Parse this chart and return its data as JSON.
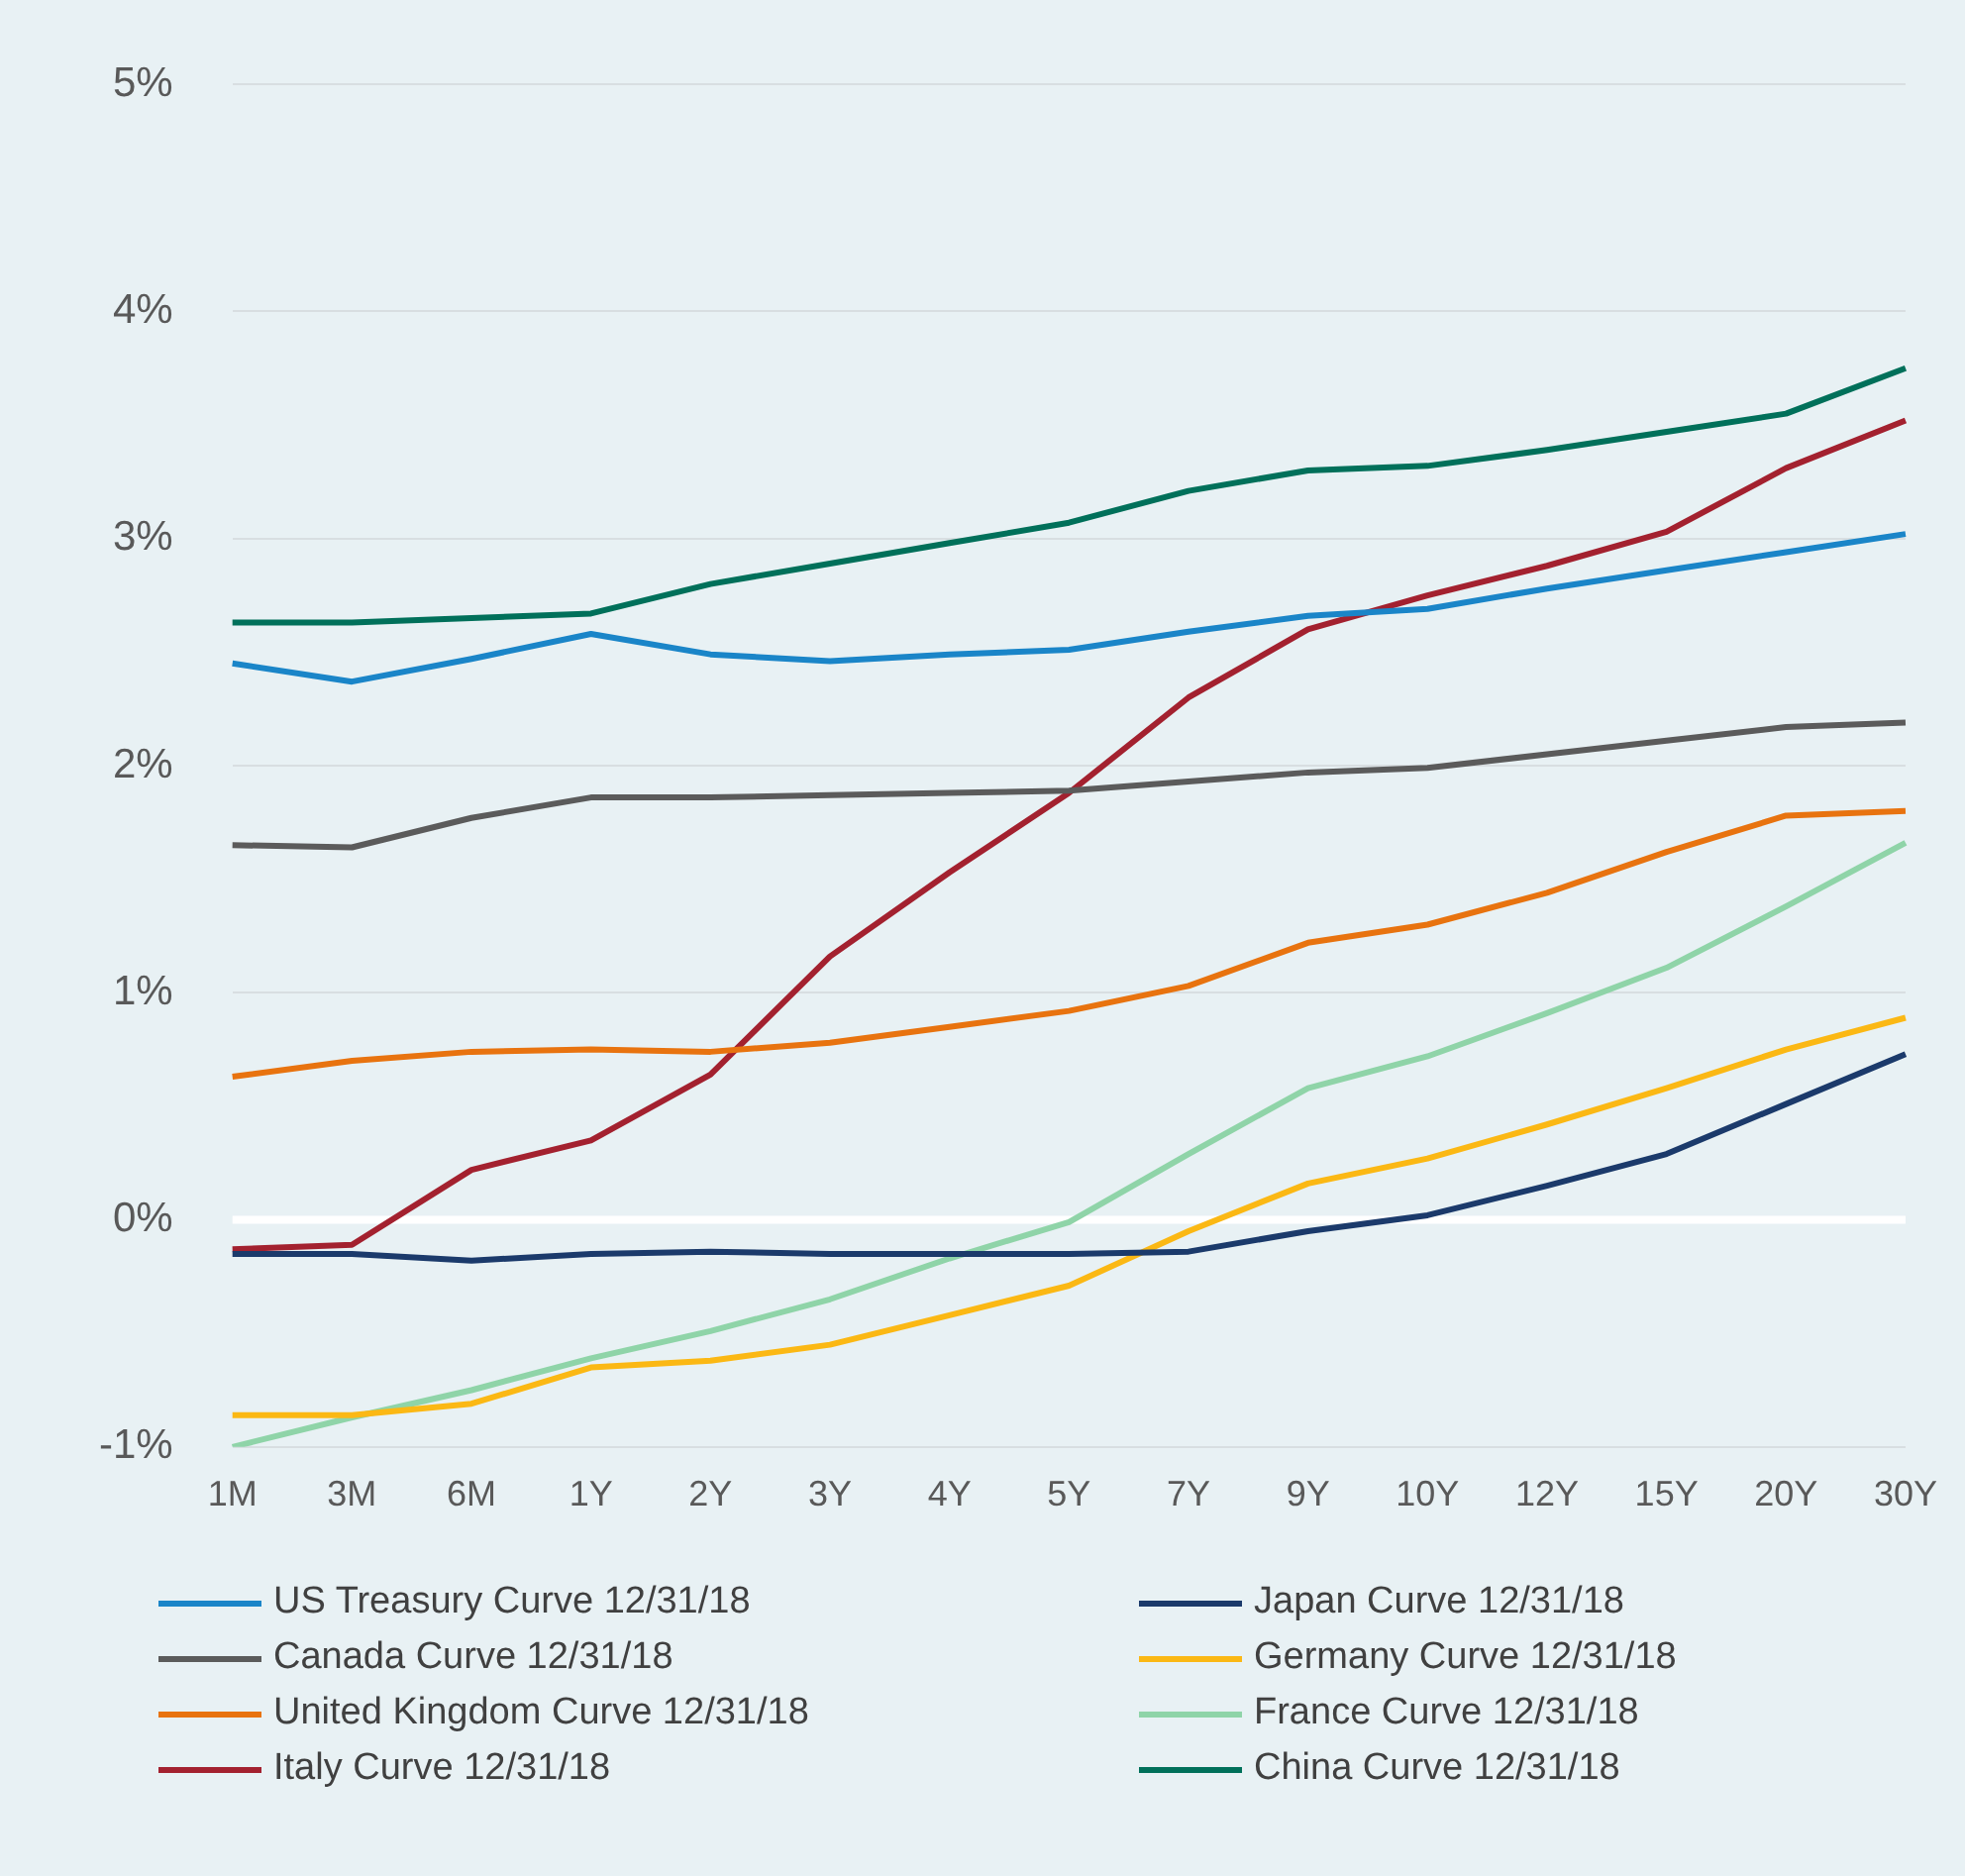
{
  "chart_data": {
    "type": "line",
    "categories": [
      "1M",
      "3M",
      "6M",
      "1Y",
      "2Y",
      "3Y",
      "4Y",
      "5Y",
      "7Y",
      "9Y",
      "10Y",
      "12Y",
      "15Y",
      "20Y",
      "30Y"
    ],
    "ylim": [
      -1,
      5
    ],
    "yticks": [
      {
        "value": -1,
        "label": "-1%"
      },
      {
        "value": 0,
        "label": "0%"
      },
      {
        "value": 1,
        "label": "1%"
      },
      {
        "value": 2,
        "label": "2%"
      },
      {
        "value": 3,
        "label": "3%"
      },
      {
        "value": 4,
        "label": "4%"
      },
      {
        "value": 5,
        "label": "5%"
      }
    ],
    "grid": "y",
    "legend": "bottom",
    "marker": "none",
    "line_style": "solid",
    "ref_lines": [
      {
        "axis": "y",
        "value": 0,
        "color": "#ffffff"
      }
    ],
    "series": [
      {
        "name": "US Treasury Curve 12/31/18",
        "color": "#1a85c8",
        "values": [
          2.45,
          2.37,
          2.47,
          2.58,
          2.49,
          2.46,
          2.49,
          2.51,
          2.59,
          2.66,
          2.69,
          2.78,
          2.86,
          2.94,
          3.02
        ]
      },
      {
        "name": "Japan Curve 12/31/18",
        "color": "#1b3a6b",
        "values": [
          -0.15,
          -0.15,
          -0.18,
          -0.15,
          -0.14,
          -0.15,
          -0.15,
          -0.15,
          -0.14,
          -0.05,
          0.02,
          0.15,
          0.29,
          0.51,
          0.73
        ]
      },
      {
        "name": "Canada Curve 12/31/18",
        "color": "#5b5b5b",
        "values": [
          1.65,
          1.64,
          1.77,
          1.86,
          1.86,
          1.87,
          1.88,
          1.89,
          1.93,
          1.97,
          1.99,
          2.05,
          2.11,
          2.17,
          2.19
        ]
      },
      {
        "name": "Germany Curve 12/31/18",
        "color": "#fbb814",
        "values": [
          -0.86,
          -0.86,
          -0.81,
          -0.65,
          -0.62,
          -0.55,
          -0.42,
          -0.29,
          -0.05,
          0.16,
          0.27,
          0.42,
          0.58,
          0.75,
          0.89
        ]
      },
      {
        "name": "United Kingdom Curve 12/31/18",
        "color": "#e8730f",
        "values": [
          0.63,
          0.7,
          0.74,
          0.75,
          0.74,
          0.78,
          0.85,
          0.92,
          1.03,
          1.22,
          1.3,
          1.44,
          1.62,
          1.78,
          1.8
        ]
      },
      {
        "name": "France Curve 12/31/18",
        "color": "#8fd4a8",
        "values": [
          -1.0,
          -0.87,
          -0.75,
          -0.61,
          -0.49,
          -0.35,
          -0.17,
          -0.01,
          0.29,
          0.58,
          0.72,
          0.91,
          1.11,
          1.38,
          1.66
        ]
      },
      {
        "name": "Italy Curve 12/31/18",
        "color": "#a3212f",
        "values": [
          -0.13,
          -0.11,
          0.22,
          0.35,
          0.64,
          1.16,
          1.53,
          1.88,
          2.3,
          2.6,
          2.75,
          2.88,
          3.03,
          3.31,
          3.52
        ]
      },
      {
        "name": "China Curve 12/31/18",
        "color": "#00705a",
        "values": [
          2.63,
          2.63,
          2.65,
          2.67,
          2.8,
          2.89,
          2.98,
          3.07,
          3.21,
          3.3,
          3.32,
          3.39,
          3.47,
          3.55,
          3.75
        ]
      }
    ]
  }
}
